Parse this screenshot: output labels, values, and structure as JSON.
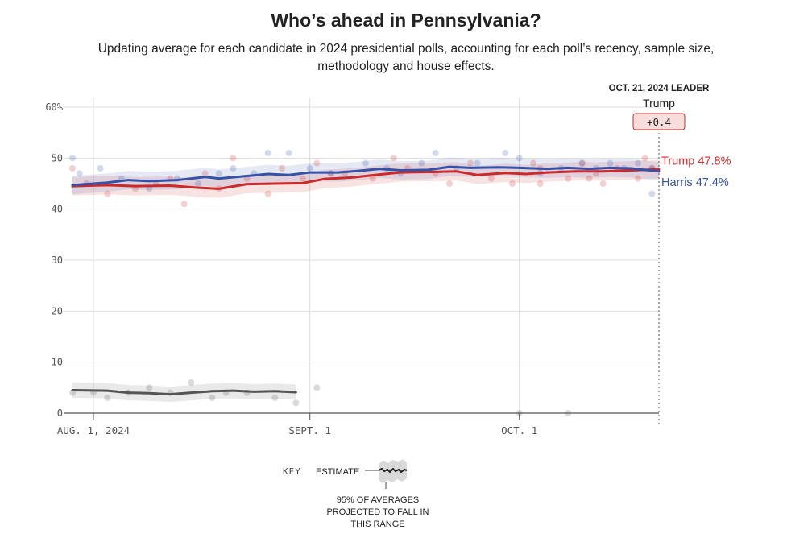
{
  "title": "Who’s ahead in Pennsylvania?",
  "subtitle": "Updating average for each candidate in 2024 presidential polls, accounting for each poll’s recency, sample size, methodology and house effects.",
  "leader": {
    "heading": "OCT. 21, 2024 LEADER",
    "name": "Trump",
    "margin": "+0.4"
  },
  "key": {
    "title": "KEY",
    "estimate_label": "ESTIMATE",
    "range_label_lines": [
      "95% OF AVERAGES",
      "PROJECTED TO FALL IN",
      "THIS RANGE"
    ]
  },
  "colors": {
    "trump": "#cc2a2a",
    "harris": "#3552a8",
    "other": "#555555",
    "grid": "#dddddd",
    "leader_box_fill": "#f9dcdc",
    "leader_box_stroke": "#cc2a2a"
  },
  "chart_data": {
    "type": "line",
    "x_start_date": "2024-07-29",
    "x_end_date": "2024-10-21",
    "ylim": [
      0,
      60
    ],
    "y_ticks": [
      0,
      10,
      20,
      30,
      40,
      50,
      60
    ],
    "y_tick_labels": [
      "0",
      "10",
      "20",
      "30",
      "40",
      "50",
      "60%"
    ],
    "x_ticks": [
      {
        "date": "2024-08-01",
        "label": "AUG. 1, 2024"
      },
      {
        "date": "2024-09-01",
        "label": "SEPT. 1"
      },
      {
        "date": "2024-10-01",
        "label": "OCT. 1"
      }
    ],
    "series": [
      {
        "name": "Trump",
        "label": "Trump 47.8%",
        "color": "#cc2a2a",
        "band_halfwidth": 1.8,
        "points": [
          [
            "2024-07-29",
            44.5
          ],
          [
            "2024-08-03",
            44.7
          ],
          [
            "2024-08-07",
            44.5
          ],
          [
            "2024-08-12",
            44.6
          ],
          [
            "2024-08-16",
            44.2
          ],
          [
            "2024-08-19",
            44.0
          ],
          [
            "2024-08-23",
            44.9
          ],
          [
            "2024-08-27",
            45.0
          ],
          [
            "2024-08-31",
            45.1
          ],
          [
            "2024-09-03",
            45.9
          ],
          [
            "2024-09-07",
            46.2
          ],
          [
            "2024-09-11",
            46.8
          ],
          [
            "2024-09-14",
            47.2
          ],
          [
            "2024-09-19",
            47.3
          ],
          [
            "2024-09-22",
            47.4
          ],
          [
            "2024-09-25",
            46.7
          ],
          [
            "2024-09-29",
            47.1
          ],
          [
            "2024-10-02",
            46.9
          ],
          [
            "2024-10-05",
            47.2
          ],
          [
            "2024-10-09",
            47.4
          ],
          [
            "2024-10-13",
            47.4
          ],
          [
            "2024-10-17",
            47.6
          ],
          [
            "2024-10-21",
            47.8
          ]
        ],
        "polls": [
          [
            "2024-07-29",
            48
          ],
          [
            "2024-07-31",
            45
          ],
          [
            "2024-08-03",
            43
          ],
          [
            "2024-08-07",
            44
          ],
          [
            "2024-08-10",
            45
          ],
          [
            "2024-08-12",
            46
          ],
          [
            "2024-08-14",
            41
          ],
          [
            "2024-08-17",
            47
          ],
          [
            "2024-08-19",
            44
          ],
          [
            "2024-08-21",
            50
          ],
          [
            "2024-08-23",
            46
          ],
          [
            "2024-08-26",
            43
          ],
          [
            "2024-08-28",
            48
          ],
          [
            "2024-08-31",
            46
          ],
          [
            "2024-09-02",
            49
          ],
          [
            "2024-09-04",
            47
          ],
          [
            "2024-09-06",
            47
          ],
          [
            "2024-09-10",
            46
          ],
          [
            "2024-09-13",
            50
          ],
          [
            "2024-09-15",
            48
          ],
          [
            "2024-09-19",
            47
          ],
          [
            "2024-09-21",
            45
          ],
          [
            "2024-09-24",
            49
          ],
          [
            "2024-09-27",
            46
          ],
          [
            "2024-09-30",
            45
          ],
          [
            "2024-10-03",
            49
          ],
          [
            "2024-10-04",
            48
          ],
          [
            "2024-10-04",
            45
          ],
          [
            "2024-10-08",
            46
          ],
          [
            "2024-10-10",
            49
          ],
          [
            "2024-10-11",
            46
          ],
          [
            "2024-10-12",
            47
          ],
          [
            "2024-10-13",
            45
          ],
          [
            "2024-10-15",
            48
          ],
          [
            "2024-10-18",
            46
          ],
          [
            "2024-10-19",
            50
          ],
          [
            "2024-10-20",
            48
          ]
        ]
      },
      {
        "name": "Harris",
        "label": "Harris 47.4%",
        "color": "#3552a8",
        "band_halfwidth": 1.8,
        "points": [
          [
            "2024-07-29",
            44.7
          ],
          [
            "2024-08-03",
            45.2
          ],
          [
            "2024-08-06",
            45.7
          ],
          [
            "2024-08-09",
            45.5
          ],
          [
            "2024-08-13",
            45.7
          ],
          [
            "2024-08-17",
            46.3
          ],
          [
            "2024-08-19",
            46.0
          ],
          [
            "2024-08-23",
            46.5
          ],
          [
            "2024-08-26",
            46.9
          ],
          [
            "2024-08-29",
            46.7
          ],
          [
            "2024-09-01",
            47.2
          ],
          [
            "2024-09-05",
            47.2
          ],
          [
            "2024-09-08",
            47.5
          ],
          [
            "2024-09-11",
            47.9
          ],
          [
            "2024-09-14",
            47.6
          ],
          [
            "2024-09-18",
            47.7
          ],
          [
            "2024-09-21",
            48.3
          ],
          [
            "2024-09-24",
            48.1
          ],
          [
            "2024-09-28",
            48.2
          ],
          [
            "2024-10-01",
            48.1
          ],
          [
            "2024-10-05",
            47.9
          ],
          [
            "2024-10-08",
            48.1
          ],
          [
            "2024-10-11",
            47.9
          ],
          [
            "2024-10-14",
            48.1
          ],
          [
            "2024-10-17",
            48.0
          ],
          [
            "2024-10-21",
            47.4
          ]
        ],
        "polls": [
          [
            "2024-07-29",
            50
          ],
          [
            "2024-07-30",
            47
          ],
          [
            "2024-08-02",
            48
          ],
          [
            "2024-08-05",
            46
          ],
          [
            "2024-08-09",
            44
          ],
          [
            "2024-08-13",
            46
          ],
          [
            "2024-08-16",
            45
          ],
          [
            "2024-08-19",
            47
          ],
          [
            "2024-08-21",
            48
          ],
          [
            "2024-08-24",
            47
          ],
          [
            "2024-08-26",
            51
          ],
          [
            "2024-08-29",
            51
          ],
          [
            "2024-09-01",
            48
          ],
          [
            "2024-09-04",
            47
          ],
          [
            "2024-09-09",
            49
          ],
          [
            "2024-09-12",
            48
          ],
          [
            "2024-09-14",
            47
          ],
          [
            "2024-09-17",
            49
          ],
          [
            "2024-09-19",
            51
          ],
          [
            "2024-09-22",
            48
          ],
          [
            "2024-09-25",
            49
          ],
          [
            "2024-09-29",
            51
          ],
          [
            "2024-10-01",
            50
          ],
          [
            "2024-10-04",
            47
          ],
          [
            "2024-10-07",
            48
          ],
          [
            "2024-10-10",
            49
          ],
          [
            "2024-10-12",
            48
          ],
          [
            "2024-10-14",
            49
          ],
          [
            "2024-10-16",
            48
          ],
          [
            "2024-10-18",
            49
          ],
          [
            "2024-10-20",
            43
          ],
          [
            "2024-10-20",
            48
          ]
        ]
      },
      {
        "name": "Other",
        "label": "",
        "color": "#555555",
        "band_halfwidth": 1.5,
        "points": [
          [
            "2024-07-29",
            4.5
          ],
          [
            "2024-08-03",
            4.4
          ],
          [
            "2024-08-06",
            4.0
          ],
          [
            "2024-08-09",
            3.9
          ],
          [
            "2024-08-12",
            3.7
          ],
          [
            "2024-08-15",
            4.0
          ],
          [
            "2024-08-18",
            4.3
          ],
          [
            "2024-08-21",
            4.4
          ],
          [
            "2024-08-24",
            4.2
          ],
          [
            "2024-08-27",
            4.3
          ],
          [
            "2024-08-30",
            4.1
          ]
        ],
        "polls": [
          [
            "2024-07-29",
            4
          ],
          [
            "2024-08-01",
            4
          ],
          [
            "2024-08-03",
            3
          ],
          [
            "2024-08-06",
            4
          ],
          [
            "2024-08-09",
            5
          ],
          [
            "2024-08-12",
            4
          ],
          [
            "2024-08-15",
            6
          ],
          [
            "2024-08-18",
            3
          ],
          [
            "2024-08-20",
            4
          ],
          [
            "2024-08-23",
            4
          ],
          [
            "2024-08-27",
            3
          ],
          [
            "2024-08-30",
            2
          ],
          [
            "2024-09-02",
            5
          ],
          [
            "2024-10-01",
            0
          ],
          [
            "2024-10-08",
            0
          ]
        ]
      }
    ]
  }
}
